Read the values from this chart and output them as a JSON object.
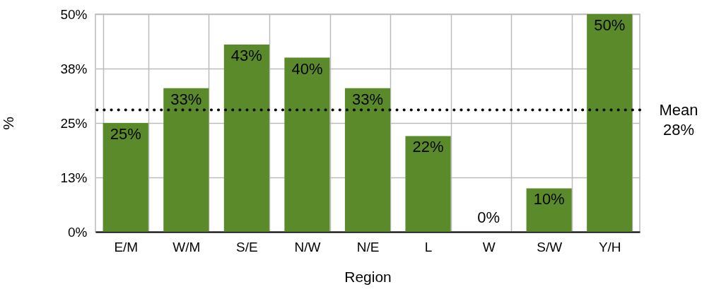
{
  "chart_data": {
    "type": "bar",
    "xlabel": "Region",
    "ylabel": "%",
    "categories": [
      "E/M",
      "W/M",
      "S/E",
      "N/W",
      "N/E",
      "L",
      "W",
      "S/W",
      "Y/H"
    ],
    "values": [
      25,
      33,
      43,
      40,
      33,
      22,
      0,
      10,
      50
    ],
    "value_labels": [
      "25%",
      "33%",
      "43%",
      "40%",
      "33%",
      "22%",
      "0%",
      "10%",
      "50%"
    ],
    "color": "#5a8a2a",
    "ylim": [
      0,
      50
    ],
    "yticks": [
      {
        "value": 0,
        "label": "0%"
      },
      {
        "value": 12.5,
        "label": "13%"
      },
      {
        "value": 25,
        "label": "25%"
      },
      {
        "value": 37.5,
        "label": "38%"
      },
      {
        "value": 50,
        "label": "50%"
      }
    ],
    "grid": true,
    "ref_lines": [
      {
        "axis": "y",
        "value": 28,
        "label": "Mean\n28%",
        "line_style": "dotted",
        "color": "#000000"
      }
    ]
  }
}
